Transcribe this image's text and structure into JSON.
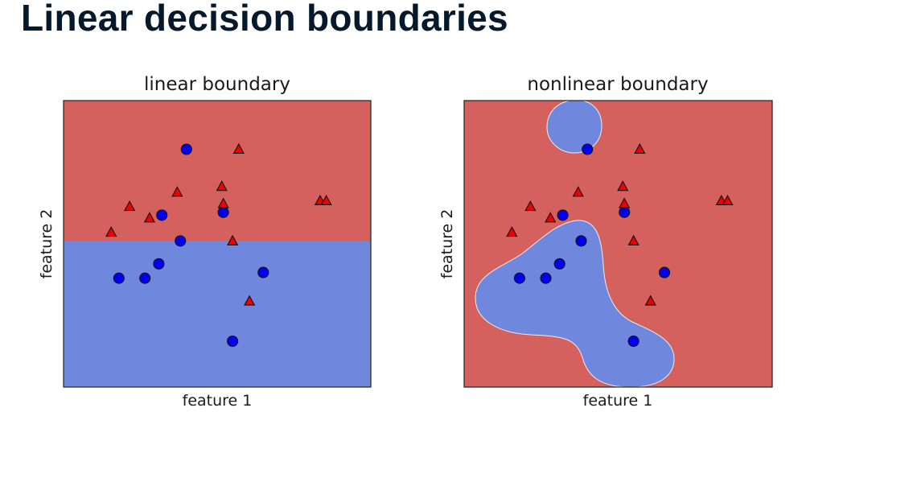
{
  "slide": {
    "title": "Linear decision boundaries"
  },
  "colors": {
    "class_a_region": "#d4615e",
    "class_b_region": "#7087de",
    "class_a_marker": "#ee0000",
    "class_b_marker": "#0000ee",
    "marker_edge": "#111111",
    "axes_frame": "#222222"
  },
  "chart_data": [
    {
      "type": "scatter",
      "title": "linear boundary",
      "xlabel": "feature 1",
      "ylabel": "feature 2",
      "xlim": [
        0,
        10
      ],
      "ylim": [
        0,
        10
      ],
      "ticks_visible": false,
      "grid": false,
      "decision_boundary": {
        "kind": "linear",
        "y": 5.1,
        "above": "class_a",
        "below": "class_b"
      },
      "series": [
        {
          "marker": "circle",
          "class": "class_b",
          "x": [
            4.0,
            3.2,
            3.8,
            1.8,
            2.65,
            3.1,
            5.2,
            6.5,
            5.5
          ],
          "y": [
            8.3,
            6.0,
            5.1,
            3.8,
            3.8,
            4.3,
            6.1,
            4.0,
            1.6
          ]
        },
        {
          "marker": "triangle",
          "class": "class_a",
          "x": [
            5.7,
            3.7,
            5.15,
            5.2,
            2.15,
            2.8,
            1.55,
            5.5,
            6.05,
            8.35,
            8.55
          ],
          "y": [
            8.3,
            6.8,
            7.0,
            6.4,
            6.3,
            5.9,
            5.4,
            5.1,
            3.0,
            6.5,
            6.5
          ]
        }
      ]
    },
    {
      "type": "scatter",
      "title": "nonlinear boundary",
      "xlabel": "feature 1",
      "ylabel": "feature 2",
      "xlim": [
        0,
        10
      ],
      "ylim": [
        0,
        10
      ],
      "ticks_visible": false,
      "grid": false,
      "decision_boundary": {
        "kind": "nonlinear",
        "regions": "two blobs of class_b inside class_a",
        "background": "class_a",
        "blobs": "class_b"
      },
      "series": [
        {
          "marker": "circle",
          "class": "class_b",
          "x": [
            4.0,
            3.2,
            3.8,
            1.8,
            2.65,
            3.1,
            5.2,
            6.5,
            5.5
          ],
          "y": [
            8.3,
            6.0,
            5.1,
            3.8,
            3.8,
            4.3,
            6.1,
            4.0,
            1.6
          ]
        },
        {
          "marker": "triangle",
          "class": "class_a",
          "x": [
            5.7,
            3.7,
            5.15,
            5.2,
            2.15,
            2.8,
            1.55,
            5.5,
            6.05,
            8.35,
            8.55
          ],
          "y": [
            8.3,
            6.8,
            7.0,
            6.4,
            6.3,
            5.9,
            5.4,
            5.1,
            3.0,
            6.5,
            6.5
          ]
        }
      ]
    }
  ]
}
